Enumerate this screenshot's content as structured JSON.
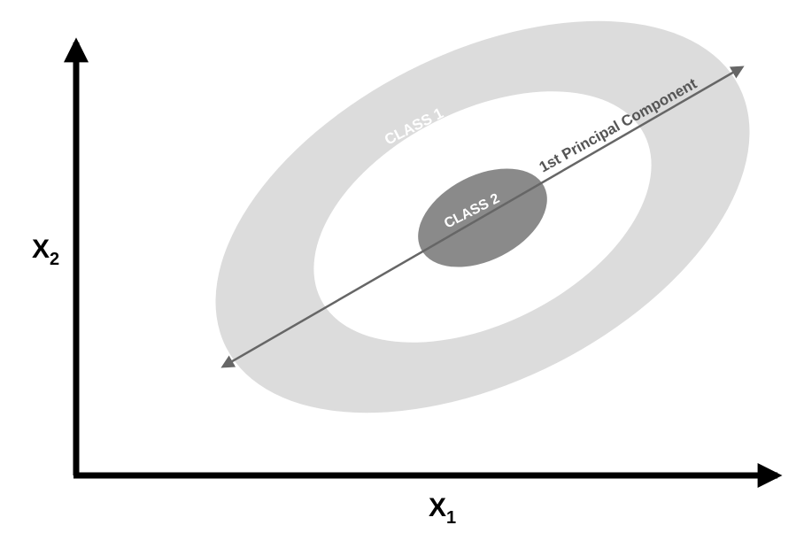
{
  "diagram": {
    "class1_label": "CLASS 1",
    "class2_label": "CLASS 2",
    "pc_label": "1st Principal Component",
    "x_axis_label": "X",
    "x_axis_subscript": "1",
    "y_axis_label": "X",
    "y_axis_subscript": "2"
  },
  "colors": {
    "outer_ring": "#dcdcdc",
    "inner_hole": "#ffffff",
    "class2_blob": "#8a8a8a",
    "pc_line": "#666666",
    "axes": "#000000"
  }
}
